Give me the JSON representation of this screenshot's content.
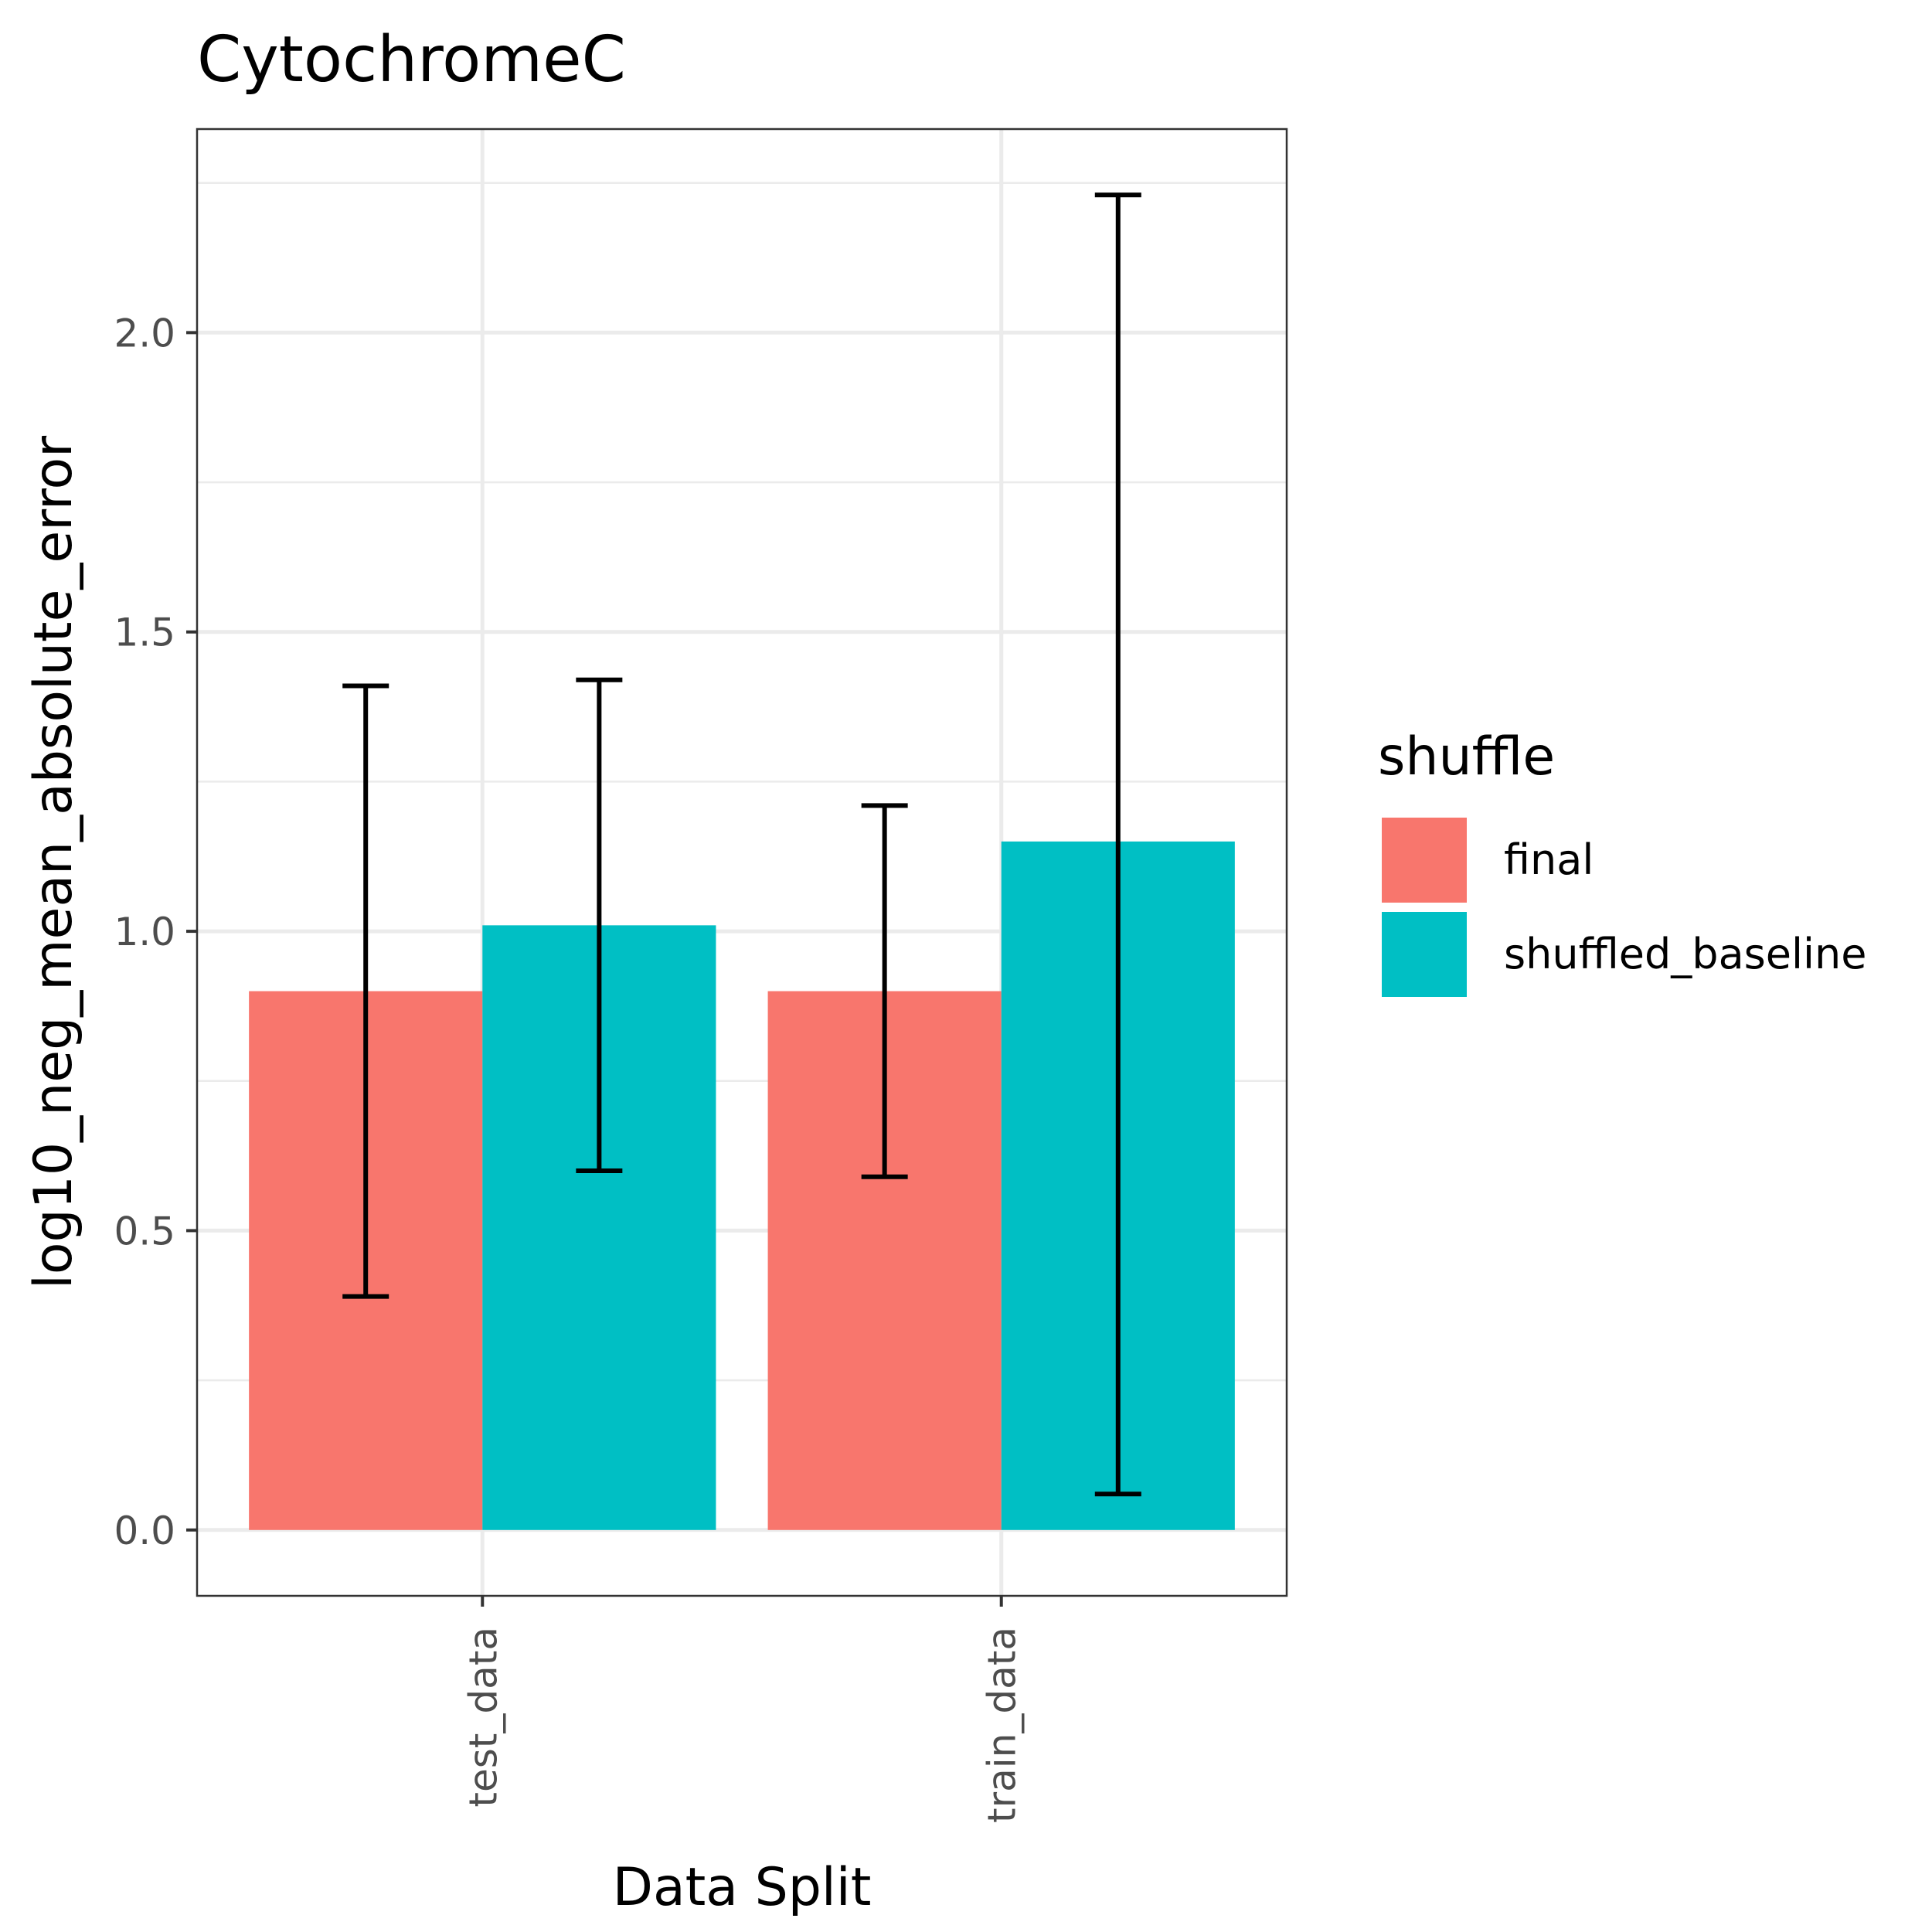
{
  "chart_data": {
    "type": "bar",
    "title": "CytochromeC",
    "xlabel": "Data Split",
    "ylabel": "log10_neg_mean_absolute_error",
    "categories": [
      "test_data",
      "train_data"
    ],
    "series": [
      {
        "name": "final",
        "color": "#F8766D",
        "values": [
          0.9,
          0.9
        ],
        "error_low": [
          0.39,
          0.59
        ],
        "error_high": [
          1.41,
          1.21
        ]
      },
      {
        "name": "shuffled_baseline",
        "color": "#00BFC4",
        "values": [
          1.01,
          1.15
        ],
        "error_low": [
          0.6,
          0.06
        ],
        "error_high": [
          1.42,
          2.23
        ]
      }
    ],
    "ylim": [
      -0.11,
      2.34
    ],
    "yticks": [
      "0.0",
      "0.5",
      "1.0",
      "1.5",
      "2.0"
    ],
    "grid": true,
    "legend": {
      "title": "shuffle",
      "position": "right"
    }
  }
}
